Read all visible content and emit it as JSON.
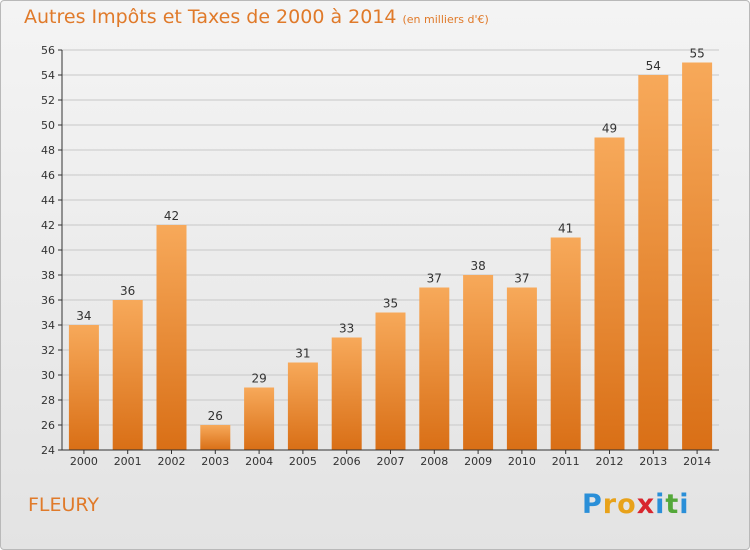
{
  "title": {
    "main": "Autres Impôts et Taxes de 2000 à 2014",
    "unit": "(en milliers d'€)"
  },
  "place_name": "FLEURY",
  "logo": {
    "text": "Proxiti",
    "letters": [
      {
        "char": "P",
        "color": "#2a8fd8"
      },
      {
        "char": "r",
        "color": "#e8a21a"
      },
      {
        "char": "o",
        "color": "#e8a21a"
      },
      {
        "char": "x",
        "color": "#d8262e"
      },
      {
        "char": "i",
        "color": "#2a8fd8"
      },
      {
        "char": "t",
        "color": "#54a83a"
      },
      {
        "char": "i",
        "color": "#2a8fd8"
      }
    ]
  },
  "colors": {
    "bar_light": "#f7a95a",
    "bar_dark": "#d96f16",
    "title": "#e07a2a",
    "grid": "#c8c8c8",
    "axis": "#333333"
  },
  "chart_data": {
    "type": "bar",
    "categories": [
      "2000",
      "2001",
      "2002",
      "2003",
      "2004",
      "2005",
      "2006",
      "2007",
      "2008",
      "2009",
      "2010",
      "2011",
      "2012",
      "2013",
      "2014"
    ],
    "values": [
      34,
      36,
      42,
      26,
      29,
      31,
      33,
      35,
      37,
      38,
      37,
      41,
      49,
      54,
      55
    ],
    "ylim": [
      24,
      56
    ],
    "yticks": [
      24,
      26,
      28,
      30,
      32,
      34,
      36,
      38,
      40,
      42,
      44,
      46,
      48,
      50,
      52,
      54,
      56
    ],
    "grid": true,
    "data_labels": true
  }
}
